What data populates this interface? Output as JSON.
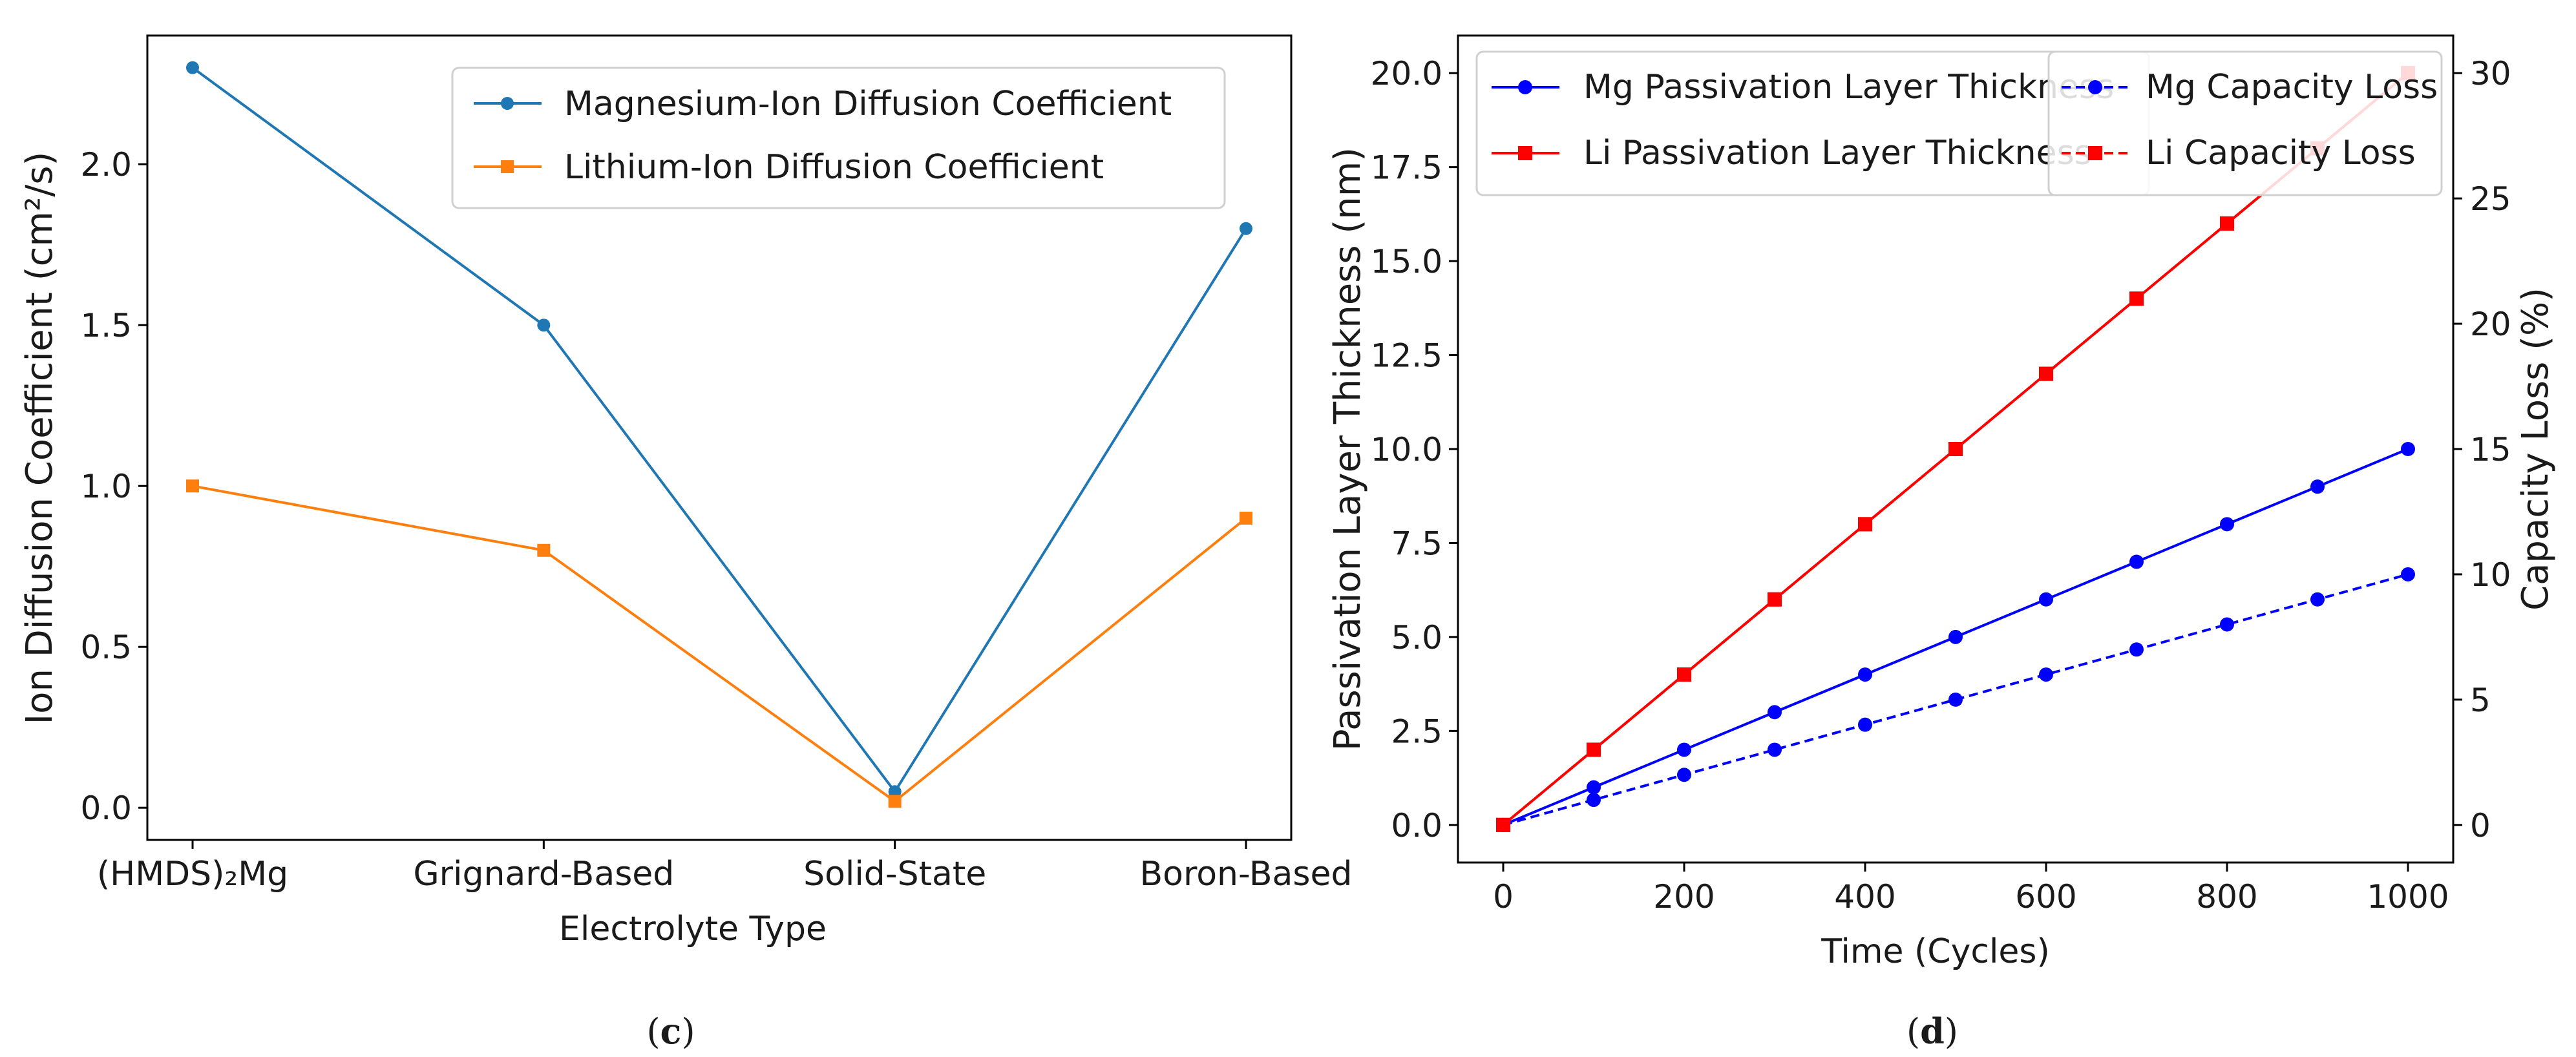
{
  "figure": {
    "panel_c_caption": "c",
    "panel_d_caption": "d"
  },
  "colors": {
    "mg_c": "#1f77b4",
    "li_c": "#ff7f0e",
    "mg_d": "#0000ff",
    "li_d": "#ff0000",
    "axis": "#000000"
  },
  "chart_data": [
    {
      "type": "line",
      "panel": "c",
      "title": "",
      "xlabel": "Electrolyte Type",
      "ylabel": "Ion Diffusion Coefficient (cm²/s)",
      "categories": [
        "(HMDS)₂Mg",
        "Grignard-Based",
        "Solid-State",
        "Boron-Based"
      ],
      "ylim": [
        -0.1,
        2.4
      ],
      "yticks": [
        0.0,
        0.5,
        1.0,
        1.5,
        2.0
      ],
      "ytick_labels": [
        "0.0",
        "0.5",
        "1.0",
        "1.5",
        "2.0"
      ],
      "legend_position": "top-right",
      "series": [
        {
          "name": "Magnesium-Ion Diffusion Coefficient",
          "marker": "circle",
          "values": [
            2.3,
            1.5,
            0.05,
            1.8
          ]
        },
        {
          "name": "Lithium-Ion Diffusion Coefficient",
          "marker": "square",
          "values": [
            1.0,
            0.8,
            0.02,
            0.9
          ]
        }
      ]
    },
    {
      "type": "line",
      "panel": "d",
      "title": "",
      "xlabel": "Time (Cycles)",
      "ylabel": "Passivation Layer Thickness (nm)",
      "y2label": "Capacity Loss (%)",
      "x": [
        0,
        100,
        200,
        300,
        400,
        500,
        600,
        700,
        800,
        900,
        1000
      ],
      "xlim": [
        -50,
        1050
      ],
      "ylim": [
        -1.0,
        21.0
      ],
      "y2lim": [
        -1.5,
        31.5
      ],
      "xticks": [
        0,
        200,
        400,
        600,
        800,
        1000
      ],
      "xtick_labels": [
        "0",
        "200",
        "400",
        "600",
        "800",
        "1000"
      ],
      "yticks": [
        0,
        2.5,
        5,
        7.5,
        10,
        12.5,
        15,
        17.5,
        20
      ],
      "ytick_labels": [
        "0.0",
        "2.5",
        "5.0",
        "7.5",
        "10.0",
        "12.5",
        "15.0",
        "17.5",
        "20.0"
      ],
      "y2ticks": [
        0,
        5,
        10,
        15,
        20,
        25,
        30
      ],
      "y2tick_labels": [
        "0",
        "5",
        "10",
        "15",
        "20",
        "25",
        "30"
      ],
      "legend_left_position": "top-left",
      "legend_right_position": "top-right",
      "series": [
        {
          "name": "Mg Passivation Layer Thickness",
          "axis": "left",
          "style": "solid",
          "marker": "circle",
          "values": [
            0,
            1,
            2,
            3,
            4,
            5,
            6,
            7,
            8,
            9,
            10
          ]
        },
        {
          "name": "Li Passivation Layer Thickness",
          "axis": "left",
          "style": "solid",
          "marker": "square",
          "values": [
            0,
            2,
            4,
            6,
            8,
            10,
            12,
            14,
            16,
            18,
            20
          ]
        },
        {
          "name": "Mg Capacity Loss",
          "axis": "right",
          "style": "dashed",
          "marker": "circle",
          "values": [
            0,
            1,
            2,
            3,
            4,
            5,
            6,
            7,
            8,
            9,
            10
          ]
        },
        {
          "name": "Li Capacity Loss",
          "axis": "right",
          "style": "dashed",
          "marker": "square",
          "values": [
            0,
            3,
            6,
            9,
            12,
            15,
            18,
            21,
            24,
            27,
            30
          ]
        }
      ]
    }
  ]
}
